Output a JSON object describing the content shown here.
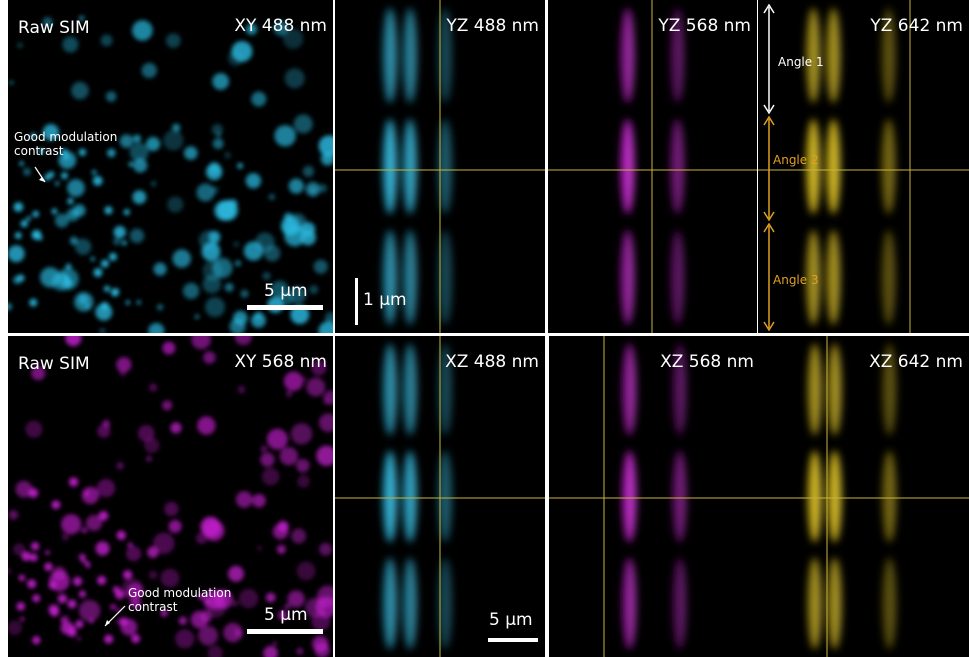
{
  "rows": [
    {
      "panels": [
        {
          "title": "XY 488 nm",
          "tag": "Raw SIM",
          "annotation": "Good modulation contrast",
          "scale_bar": "5 µm"
        },
        {
          "title": "YZ 488 nm",
          "scale_bar": "1 µm"
        },
        {
          "title": "YZ 568 nm"
        },
        {
          "title": "YZ 642 nm",
          "angles": [
            "Angle 1",
            "Angle 2",
            "Angle 3"
          ]
        }
      ]
    },
    {
      "panels": [
        {
          "title": "XY 568 nm",
          "tag": "Raw SIM",
          "annotation": "Good modulation contrast",
          "scale_bar": "5 µm"
        },
        {
          "title": "XZ 488 nm",
          "scale_bar": "5 µm"
        },
        {
          "title": "XZ 568 nm"
        },
        {
          "title": "XZ 642 nm"
        }
      ]
    }
  ]
}
